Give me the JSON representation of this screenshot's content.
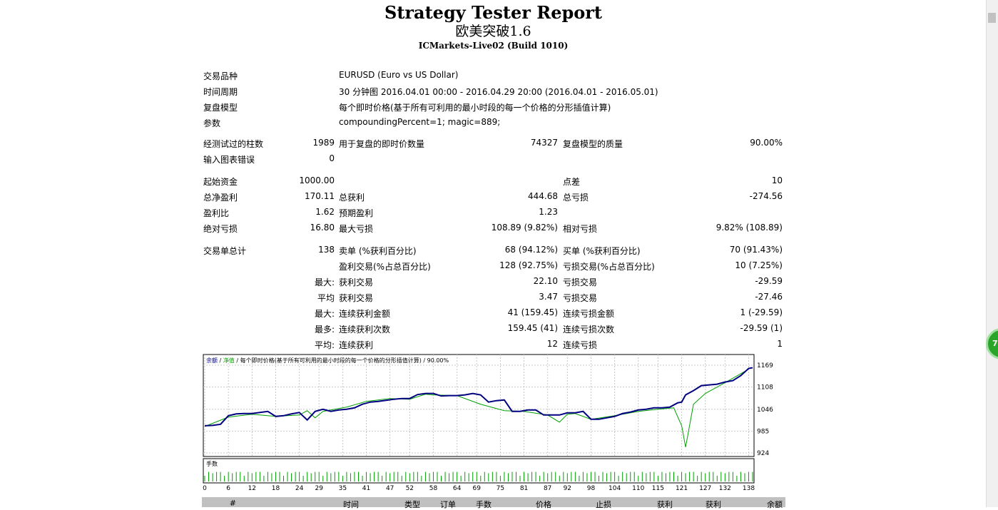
{
  "header": {
    "title": "Strategy Tester Report",
    "ea_name": "欧美突破1.6",
    "server": "ICMarkets-Live02 (Build 1010)"
  },
  "settings": [
    {
      "label": "交易品种",
      "value": "EURUSD (Euro vs US Dollar)"
    },
    {
      "label": "时间周期",
      "value": "30 分钟图 2016.04.01 00:00 - 2016.04.29 20:00 (2016.04.01 - 2016.05.01)"
    },
    {
      "label": "复盘模型",
      "value": "每个即时价格(基于所有可利用的最小时段的每一个价格的分形插值计算)"
    },
    {
      "label": "参数",
      "value": "compoundingPercent=1; magic=889;"
    }
  ],
  "stats": {
    "bars_label": "经测试过的柱数",
    "bars": "1989",
    "ticks_label": "用于复盘的即时价数量",
    "ticks": "74327",
    "quality_label": "复盘模型的质量",
    "quality": "90.00%",
    "errors_label": "输入图表错误",
    "errors": "0",
    "deposit_label": "起始资金",
    "deposit": "1000.00",
    "spread_label": "点差",
    "spread": "10",
    "net_label": "总净盈利",
    "net": "170.11",
    "gross_profit_label": "总获利",
    "gross_profit": "444.68",
    "gross_loss_label": "总亏损",
    "gross_loss": "-274.56",
    "pf_label": "盈利比",
    "pf": "1.62",
    "payoff_label": "预期盈利",
    "payoff": "1.23",
    "abs_dd_label": "绝对亏损",
    "abs_dd": "16.80",
    "max_dd_label": "最大亏损",
    "max_dd": "108.89 (9.82%)",
    "rel_dd_label": "相对亏损",
    "rel_dd": "9.82% (108.89)",
    "trades_label": "交易单总计",
    "trades": "138",
    "short_label": "卖单 (%获利百分比)",
    "short": "68 (94.12%)",
    "long_label": "买单 (%获利百分比)",
    "long": "70 (91.43%)",
    "win_label": "盈利交易(%占总百分比)",
    "win": "128 (92.75%)",
    "loss_label": "亏损交易(%占总百分比)",
    "loss": "10 (7.25%)",
    "max_prefix": "最大:",
    "max_win_label": "获利交易",
    "max_win": "22.10",
    "max_loss_label": "亏损交易",
    "max_loss": "-29.59",
    "avg_prefix": "平均",
    "avg_win_label": "获利交易",
    "avg_win": "3.47",
    "avg_loss_label": "亏损交易",
    "avg_loss": "-27.46",
    "max2_prefix": "最大:",
    "cons_win_amt_label": "连续获利金额",
    "cons_win_amt": "41 (159.45)",
    "cons_loss_amt_label": "连续亏损金额",
    "cons_loss_amt": "1 (-29.59)",
    "most_prefix": "最多:",
    "cons_win_cnt_label": "连续获利次数",
    "cons_win_cnt": "159.45 (41)",
    "cons_loss_cnt_label": "连续亏损次数",
    "cons_loss_cnt": "-29.59 (1)",
    "avg2_prefix": "平均:",
    "avg_cons_win_label": "连续获利",
    "avg_cons_win": "12",
    "avg_cons_loss_label": "连续亏损",
    "avg_cons_loss": "1"
  },
  "chart_data": {
    "type": "line",
    "legend_text": [
      "余额",
      "/",
      "净值",
      "/ 每个即时价格(基于所有可利用的最小时段的每一个价格的分形插值计算) / 90.00%"
    ],
    "y_ticks": [
      "1169",
      "1108",
      "1046",
      "985",
      "924"
    ],
    "ylim": [
      924,
      1169
    ],
    "x_ticks": [
      "0",
      "6",
      "12",
      "18",
      "24",
      "29",
      "35",
      "41",
      "47",
      "52",
      "58",
      "64",
      "69",
      "75",
      "81",
      "87",
      "92",
      "98",
      "104",
      "110",
      "115",
      "121",
      "127",
      "132",
      "138"
    ],
    "xlim": [
      0,
      139
    ],
    "volume_label": "手数",
    "series": [
      {
        "color": "#000080",
        "x": [
          0,
          2,
          4,
          6,
          8,
          10,
          12,
          14,
          16,
          18,
          20,
          22,
          24,
          26,
          28,
          30,
          32,
          34,
          36,
          38,
          40,
          42,
          44,
          46,
          48,
          50,
          52,
          54,
          56,
          58,
          60,
          62,
          64,
          66,
          68,
          70,
          72,
          74,
          76,
          78,
          80,
          82,
          84,
          86,
          88,
          90,
          92,
          94,
          96,
          98,
          100,
          102,
          104,
          106,
          108,
          110,
          112,
          114,
          116,
          118,
          120,
          121,
          122,
          124,
          126,
          128,
          130,
          132,
          134,
          136,
          138,
          139
        ],
        "values": [
          1000,
          1001,
          1004,
          1028,
          1033,
          1034,
          1034,
          1037,
          1040,
          1026,
          1028,
          1033,
          1037,
          1016,
          1040,
          1046,
          1040,
          1044,
          1046,
          1050,
          1060,
          1066,
          1068,
          1071,
          1074,
          1076,
          1076,
          1087,
          1090,
          1090,
          1083,
          1084,
          1084,
          1086,
          1090,
          1086,
          1066,
          1070,
          1072,
          1040,
          1040,
          1044,
          1044,
          1030,
          1030,
          1030,
          1036,
          1036,
          1040,
          1018,
          1018,
          1022,
          1026,
          1034,
          1038,
          1044,
          1046,
          1050,
          1050,
          1052,
          1064,
          1066,
          1086,
          1098,
          1112,
          1114,
          1116,
          1122,
          1126,
          1140,
          1160,
          1162
        ]
      },
      {
        "color": "#00a000",
        "x": [
          0,
          6,
          12,
          18,
          24,
          26,
          28,
          30,
          36,
          41,
          47,
          52,
          56,
          58,
          64,
          70,
          76,
          81,
          87,
          90,
          92,
          94,
          98,
          104,
          110,
          115,
          119,
          121,
          122,
          124,
          127,
          132,
          138
        ],
        "values": [
          998,
          1024,
          1032,
          1026,
          1030,
          1042,
          1022,
          1040,
          1052,
          1068,
          1076,
          1074,
          1088,
          1086,
          1084,
          1060,
          1042,
          1040,
          1030,
          1010,
          1032,
          1034,
          1018,
          1028,
          1040,
          1046,
          1050,
          1000,
          940,
          1060,
          1090,
          1120,
          1158
        ]
      }
    ],
    "volume": [
      0.1,
      0.13,
      0.12,
      0.13,
      0.13
    ]
  },
  "table_header": [
    "#",
    "时间",
    "类型",
    "订单",
    "手数",
    "价格",
    "止损",
    "获利",
    "获利",
    "余额"
  ]
}
